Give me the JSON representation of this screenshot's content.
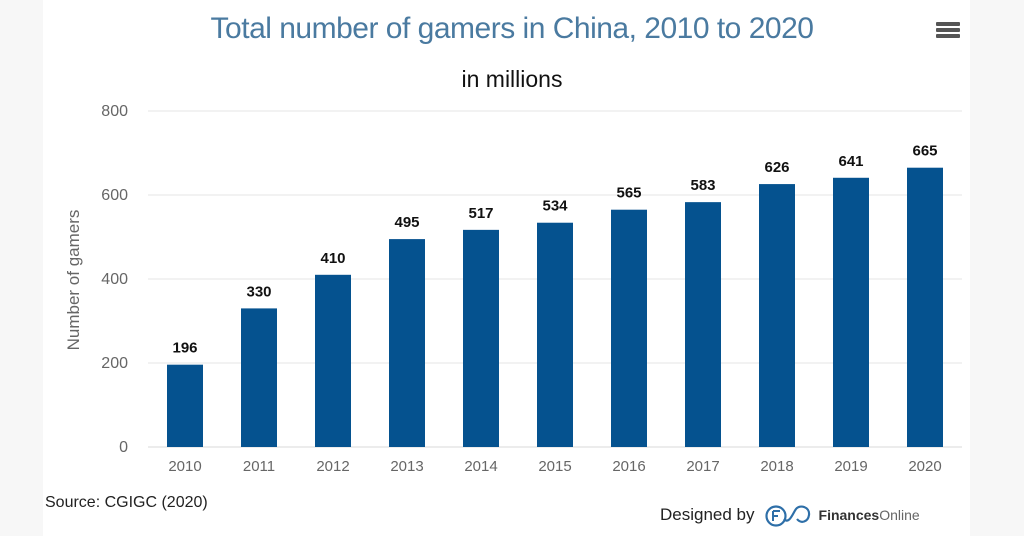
{
  "header": {
    "title": "Total number of gamers in China, 2010 to 2020",
    "subtitle": "in millions",
    "menu_icon": "hamburger-menu-icon"
  },
  "footer": {
    "source": "Source: CGIGC (2020)",
    "designed_by": "Designed by",
    "brand_bold": "Finances",
    "brand_light": "Online",
    "logo_icon": "financesonline-cloud-logo-icon"
  },
  "colors": {
    "bar": "#05528f",
    "title": "#4a7aa0",
    "grid": "#e6e6e6"
  },
  "chart_data": {
    "type": "bar",
    "title": "Total number of gamers in China, 2010 to 2020",
    "subtitle": "in millions",
    "xlabel": "",
    "ylabel": "Number of gamers",
    "categories": [
      "2010",
      "2011",
      "2012",
      "2013",
      "2014",
      "2015",
      "2016",
      "2017",
      "2018",
      "2019",
      "2020"
    ],
    "values": [
      196,
      330,
      410,
      495,
      517,
      534,
      565,
      583,
      626,
      641,
      665
    ],
    "data_labels": [
      "196",
      "330",
      "410",
      "495",
      "517",
      "534",
      "565",
      "583",
      "626",
      "641",
      "665"
    ],
    "ylim": [
      0,
      800
    ],
    "yticks": [
      0,
      200,
      400,
      600,
      800
    ],
    "ytick_labels": [
      "0",
      "200",
      "400",
      "600",
      "800"
    ],
    "grid": true,
    "legend": "none"
  }
}
